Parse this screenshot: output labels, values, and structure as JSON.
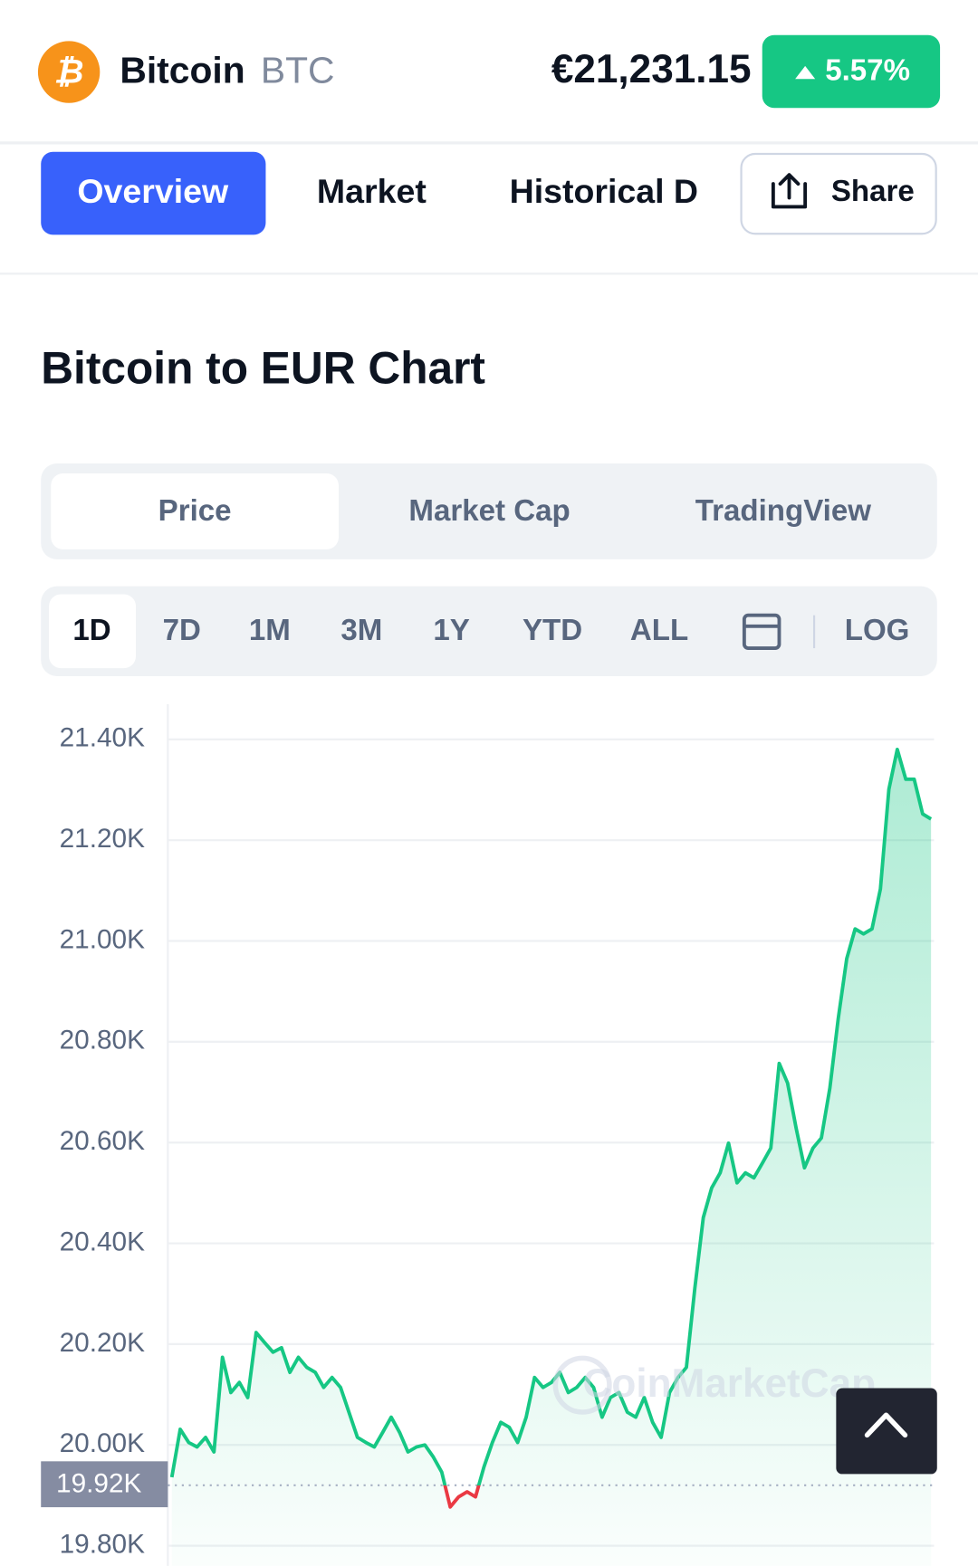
{
  "header": {
    "name": "Bitcoin",
    "symbol": "BTC",
    "price": "€21,231.15",
    "change": "5.57%"
  },
  "tabs": [
    "Overview",
    "Market",
    "Historical D"
  ],
  "share": "Share",
  "chart_title": "Bitcoin to EUR Chart",
  "chart_modes": [
    "Price",
    "Market Cap",
    "TradingView"
  ],
  "ranges": [
    "1D",
    "7D",
    "1M",
    "3M",
    "1Y",
    "YTD",
    "ALL"
  ],
  "log": "LOG",
  "watermark": "CoinMarketCap",
  "chart_data": {
    "type": "area",
    "color": "#16c784",
    "down_color": "#ea3943",
    "ylim": [
      19760,
      21470
    ],
    "yticks": [
      {
        "value": 19800,
        "label": "19.80K"
      },
      {
        "value": 20000,
        "label": "20.00K"
      },
      {
        "value": 20200,
        "label": "20.20K"
      },
      {
        "value": 20400,
        "label": "20.40K"
      },
      {
        "value": 20600,
        "label": "20.60K"
      },
      {
        "value": 20800,
        "label": "20.80K"
      },
      {
        "value": 21000,
        "label": "21.00K"
      },
      {
        "value": 21200,
        "label": "21.20K"
      },
      {
        "value": 21400,
        "label": "21.40K"
      }
    ],
    "grid": true,
    "reference": {
      "value": 19920,
      "label": "19.92K"
    },
    "values": [
      19936,
      20031,
      20005,
      19996,
      20015,
      19986,
      20174,
      20104,
      20124,
      20094,
      20223,
      20203,
      20184,
      20193,
      20144,
      20174,
      20154,
      20144,
      20114,
      20134,
      20114,
      20065,
      20015,
      20005,
      19996,
      20025,
      20055,
      20025,
      19986,
      19996,
      20000,
      19976,
      19946,
      19877,
      19897,
      19907,
      19897,
      19956,
      20005,
      20045,
      20035,
      20005,
      20055,
      20134,
      20114,
      20124,
      20144,
      20104,
      20114,
      20134,
      20114,
      20055,
      20094,
      20104,
      20065,
      20055,
      20094,
      20045,
      20015,
      20104,
      20134,
      20154,
      20312,
      20451,
      20510,
      20540,
      20599,
      20520,
      20540,
      20530,
      20559,
      20589,
      20757,
      20718,
      20629,
      20550,
      20589,
      20609,
      20708,
      20846,
      20965,
      21024,
      21014,
      21024,
      21103,
      21301,
      21380,
      21321,
      21321,
      21252,
      21242
    ]
  }
}
